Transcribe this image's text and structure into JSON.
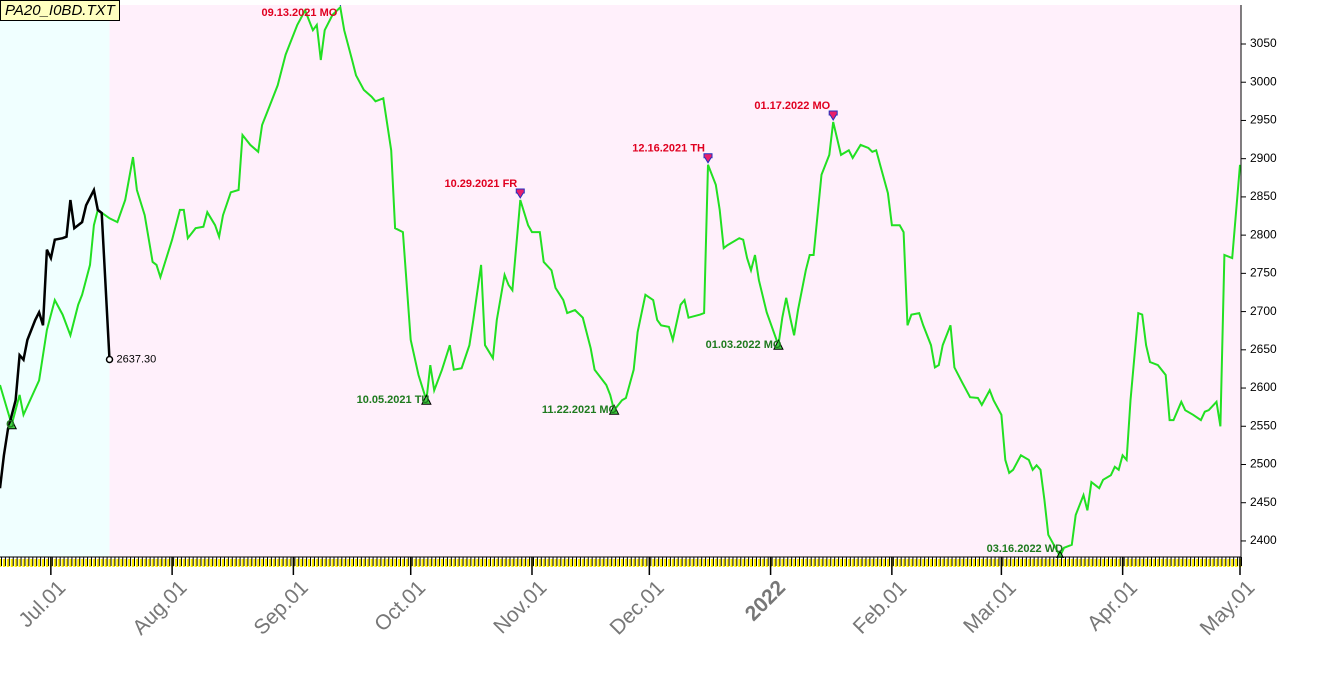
{
  "chart_data": {
    "type": "line",
    "title": "PA20_I0BD.TXT",
    "xlim": [
      "2021-06-18",
      "2022-05-01"
    ],
    "xticks": [
      {
        "value": "2021-07-01",
        "label": "Jul.01"
      },
      {
        "value": "2021-08-01",
        "label": "Aug.01"
      },
      {
        "value": "2021-09-01",
        "label": "Sep.01"
      },
      {
        "value": "2021-10-01",
        "label": "Oct.01"
      },
      {
        "value": "2021-11-01",
        "label": "Nov.01"
      },
      {
        "value": "2021-12-01",
        "label": "Dec.01"
      },
      {
        "value": "2022-01-01",
        "label": "2022"
      },
      {
        "value": "2022-02-01",
        "label": "Feb.01"
      },
      {
        "value": "2022-03-01",
        "label": "Mar.01"
      },
      {
        "value": "2022-04-01",
        "label": "Apr.01"
      },
      {
        "value": "2022-05-01",
        "label": "May.01"
      }
    ],
    "ylim": [
      2379,
      3101
    ],
    "yticks": [
      2400,
      2450,
      2500,
      2550,
      2600,
      2650,
      2700,
      2750,
      2800,
      2850,
      2900,
      2950,
      3000,
      3050
    ],
    "series": [
      {
        "color": "#22e022",
        "x": [
          "2021-06-18",
          "2021-06-21",
          "2021-06-23",
          "2021-06-24",
          "2021-06-28",
          "2021-06-30",
          "2021-07-02",
          "2021-07-04",
          "2021-07-06",
          "2021-07-08",
          "2021-07-09",
          "2021-07-11",
          "2021-07-12",
          "2021-07-13",
          "2021-07-16",
          "2021-07-18",
          "2021-07-20",
          "2021-07-22",
          "2021-07-23",
          "2021-07-25",
          "2021-07-27",
          "2021-07-28",
          "2021-07-29",
          "2021-08-01",
          "2021-08-03",
          "2021-08-04",
          "2021-08-05",
          "2021-08-07",
          "2021-08-09",
          "2021-08-10",
          "2021-08-12",
          "2021-08-13",
          "2021-08-14",
          "2021-08-16",
          "2021-08-18",
          "2021-08-19",
          "2021-08-21",
          "2021-08-23",
          "2021-08-24",
          "2021-08-26",
          "2021-08-28",
          "2021-08-30",
          "2021-08-31",
          "2021-09-02",
          "2021-09-04",
          "2021-09-06",
          "2021-09-07",
          "2021-09-08",
          "2021-09-09",
          "2021-09-11",
          "2021-09-13",
          "2021-09-14",
          "2021-09-16",
          "2021-09-17",
          "2021-09-19",
          "2021-09-21",
          "2021-09-22",
          "2021-09-24",
          "2021-09-26",
          "2021-09-27",
          "2021-09-29",
          "2021-10-01",
          "2021-10-03",
          "2021-10-05",
          "2021-10-06",
          "2021-10-07",
          "2021-10-09",
          "2021-10-11",
          "2021-10-12",
          "2021-10-14",
          "2021-10-16",
          "2021-10-17",
          "2021-10-19",
          "2021-10-20",
          "2021-10-22",
          "2021-10-23",
          "2021-10-25",
          "2021-10-26",
          "2021-10-27",
          "2021-10-29",
          "2021-10-31",
          "2021-11-01",
          "2021-11-03",
          "2021-11-04",
          "2021-11-06",
          "2021-11-07",
          "2021-11-09",
          "2021-11-10",
          "2021-11-12",
          "2021-11-14",
          "2021-11-16",
          "2021-11-17",
          "2021-11-20",
          "2021-11-21",
          "2021-11-22",
          "2021-11-24",
          "2021-11-25",
          "2021-11-27",
          "2021-11-28",
          "2021-11-30",
          "2021-12-02",
          "2021-12-03",
          "2021-12-04",
          "2021-12-06",
          "2021-12-07",
          "2021-12-09",
          "2021-12-10",
          "2021-12-11",
          "2021-12-14",
          "2021-12-15",
          "2021-12-16",
          "2021-12-18",
          "2021-12-19",
          "2021-12-20",
          "2021-12-21",
          "2021-12-24",
          "2021-12-25",
          "2021-12-26",
          "2021-12-27",
          "2021-12-28",
          "2021-12-29",
          "2021-12-31",
          "2022-01-03",
          "2022-01-04",
          "2022-01-05",
          "2022-01-06",
          "2022-01-07",
          "2022-01-08",
          "2022-01-10",
          "2022-01-11",
          "2022-01-12",
          "2022-01-14",
          "2022-01-16",
          "2022-01-17",
          "2022-01-19",
          "2022-01-21",
          "2022-01-22",
          "2022-01-24",
          "2022-01-26",
          "2022-01-27",
          "2022-01-28",
          "2022-01-29",
          "2022-01-31",
          "2022-02-01",
          "2022-02-03",
          "2022-02-04",
          "2022-02-05",
          "2022-02-06",
          "2022-02-08",
          "2022-02-09",
          "2022-02-11",
          "2022-02-12",
          "2022-02-13",
          "2022-02-14",
          "2022-02-16",
          "2022-02-17",
          "2022-02-19",
          "2022-02-21",
          "2022-02-23",
          "2022-02-24",
          "2022-02-26",
          "2022-02-27",
          "2022-03-01",
          "2022-03-02",
          "2022-03-03",
          "2022-03-04",
          "2022-03-06",
          "2022-03-08",
          "2022-03-09",
          "2022-03-10",
          "2022-03-11",
          "2022-03-12",
          "2022-03-13",
          "2022-03-16",
          "2022-03-17",
          "2022-03-19",
          "2022-03-20",
          "2022-03-22",
          "2022-03-23",
          "2022-03-24",
          "2022-03-26",
          "2022-03-27",
          "2022-03-29",
          "2022-03-30",
          "2022-03-31",
          "2022-04-01",
          "2022-04-02",
          "2022-04-03",
          "2022-04-05",
          "2022-04-06",
          "2022-04-07",
          "2022-04-08",
          "2022-04-10",
          "2022-04-12",
          "2022-04-13",
          "2022-04-14",
          "2022-04-16",
          "2022-04-17",
          "2022-04-19",
          "2022-04-21",
          "2022-04-22",
          "2022-04-23",
          "2022-04-25",
          "2022-04-26",
          "2022-04-27",
          "2022-04-29",
          "2022-05-01"
        ],
        "values": [
          2604,
          2552,
          2591,
          2565,
          2610,
          2676,
          2715,
          2696,
          2669,
          2709,
          2722,
          2761,
          2813,
          2833,
          2822,
          2817,
          2846,
          2902,
          2859,
          2826,
          2765,
          2761,
          2745,
          2794,
          2833,
          2833,
          2796,
          2809,
          2811,
          2830,
          2813,
          2798,
          2826,
          2856,
          2859,
          2931,
          2918,
          2909,
          2944,
          2970,
          2996,
          3036,
          3049,
          3075,
          3094,
          3068,
          3075,
          3029,
          3068,
          3088,
          3098,
          3068,
          3029,
          3009,
          2990,
          2981,
          2975,
          2979,
          2911,
          2809,
          2804,
          2663,
          2617,
          2584,
          2630,
          2597,
          2624,
          2656,
          2624,
          2626,
          2656,
          2689,
          2761,
          2656,
          2639,
          2689,
          2748,
          2735,
          2728,
          2846,
          2813,
          2804,
          2804,
          2765,
          2754,
          2731,
          2715,
          2698,
          2702,
          2692,
          2652,
          2624,
          2604,
          2591,
          2571,
          2584,
          2587,
          2624,
          2673,
          2722,
          2715,
          2689,
          2682,
          2680,
          2663,
          2709,
          2715,
          2692,
          2696,
          2698,
          2892,
          2866,
          2833,
          2783,
          2787,
          2796,
          2794,
          2770,
          2754,
          2774,
          2741,
          2699,
          2656,
          2692,
          2718,
          2692,
          2669,
          2702,
          2754,
          2774,
          2774,
          2879,
          2905,
          2948,
          2905,
          2911,
          2901,
          2918,
          2914,
          2909,
          2911,
          2892,
          2855,
          2813,
          2813,
          2804,
          2682,
          2696,
          2698,
          2682,
          2656,
          2627,
          2630,
          2656,
          2682,
          2627,
          2607,
          2588,
          2587,
          2578,
          2597,
          2584,
          2565,
          2506,
          2489,
          2493,
          2512,
          2506,
          2493,
          2499,
          2493,
          2454,
          2408,
          2380,
          2391,
          2395,
          2434,
          2460,
          2440,
          2477,
          2469,
          2480,
          2486,
          2497,
          2493,
          2512,
          2506,
          2584,
          2698,
          2696,
          2656,
          2634,
          2630,
          2617,
          2558,
          2558,
          2582,
          2571,
          2565,
          2558,
          2569,
          2571,
          2582,
          2550,
          2774,
          2770,
          2892
        ]
      },
      {
        "color": "#000000",
        "x": [
          "2021-06-18",
          "2021-06-19",
          "2021-06-20",
          "2021-06-22",
          "2021-06-23",
          "2021-06-24",
          "2021-06-25",
          "2021-06-27",
          "2021-06-28",
          "2021-06-29",
          "2021-06-30",
          "2021-07-01",
          "2021-07-02",
          "2021-07-04",
          "2021-07-05",
          "2021-07-06",
          "2021-07-07",
          "2021-07-09",
          "2021-07-10",
          "2021-07-12",
          "2021-07-13",
          "2021-07-14",
          "2021-07-16"
        ],
        "values": [
          2469,
          2512,
          2545,
          2584,
          2643,
          2637,
          2663,
          2689,
          2699,
          2682,
          2781,
          2770,
          2794,
          2796,
          2798,
          2846,
          2809,
          2817,
          2839,
          2859,
          2833,
          2829,
          2637.3
        ],
        "value_labels": [
          null,
          null,
          null,
          null,
          null,
          null,
          null,
          null,
          null,
          null,
          null,
          null,
          null,
          null,
          null,
          null,
          null,
          null,
          null,
          null,
          null,
          null,
          "2637.30"
        ]
      }
    ],
    "peaks": [
      {
        "label": "09.13.2021 MO",
        "x": "2021-09-13",
        "value": 3098
      },
      {
        "label": "10.29.2021 FR",
        "x": "2021-10-29",
        "value": 2846
      },
      {
        "label": "12.16.2021 TH",
        "x": "2021-12-16",
        "value": 2892
      },
      {
        "label": "01.17.2022 MO",
        "x": "2022-01-17",
        "value": 2948
      }
    ],
    "troughs": [
      {
        "label": "O",
        "x": "2021-06-21",
        "value": 2552
      },
      {
        "label": "10.05.2021 TU",
        "x": "2021-10-05",
        "value": 2584
      },
      {
        "label": "11.22.2021 MO",
        "x": "2021-11-22",
        "value": 2571
      },
      {
        "label": "01.03.2022 MO",
        "x": "2022-01-03",
        "value": 2656
      },
      {
        "label": "03.16.2022 WD",
        "x": "2022-03-16",
        "value": 2380
      }
    ]
  }
}
